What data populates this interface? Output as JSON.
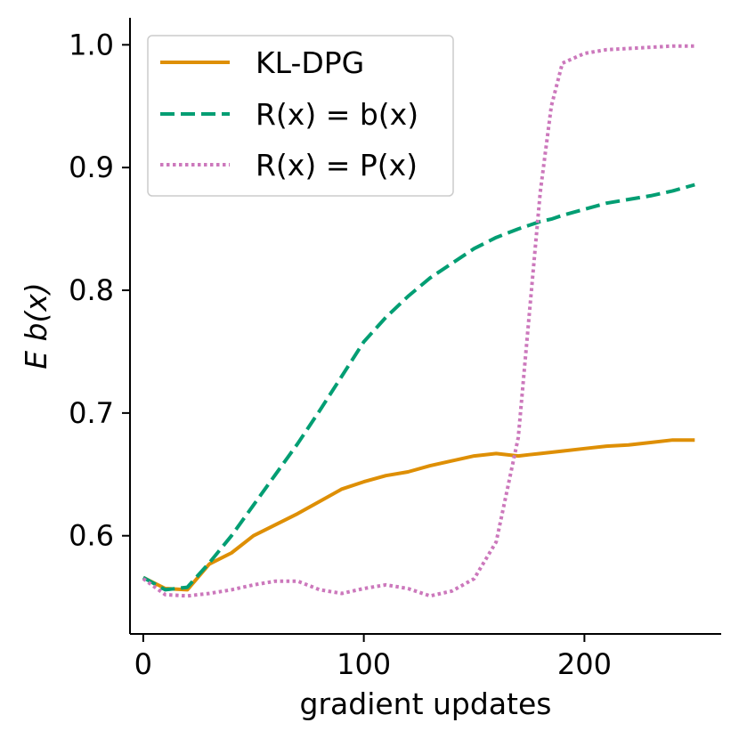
{
  "chart_data": {
    "type": "line",
    "xlabel": "gradient updates",
    "ylabel": "E b(x)",
    "xlim": [
      -6,
      262
    ],
    "ylim": [
      0.52,
      1.022
    ],
    "x_ticks": [
      0,
      100,
      200
    ],
    "x_tick_labels": [
      "0",
      "100",
      "200"
    ],
    "y_ticks": [
      0.6,
      0.7,
      0.8,
      0.9,
      1.0
    ],
    "y_tick_labels": [
      "0.6",
      "0.7",
      "0.8",
      "0.9",
      "1.0"
    ],
    "grid": false,
    "legend_position": "top-left",
    "x": [
      0,
      10,
      20,
      30,
      40,
      50,
      60,
      70,
      80,
      90,
      100,
      110,
      120,
      130,
      140,
      150,
      160,
      170,
      175,
      180,
      185,
      190,
      200,
      210,
      220,
      230,
      240,
      250
    ],
    "series": [
      {
        "name": "KL-DPG",
        "style": "solid",
        "color": "#de8f05",
        "values": [
          0.566,
          0.557,
          0.556,
          0.577,
          0.586,
          0.6,
          0.609,
          0.618,
          0.628,
          0.638,
          0.644,
          0.649,
          0.652,
          0.657,
          0.661,
          0.665,
          0.667,
          0.665,
          0.666,
          0.667,
          0.668,
          0.669,
          0.671,
          0.673,
          0.674,
          0.676,
          0.678,
          0.678
        ]
      },
      {
        "name": "R(x) = b(x)",
        "style": "dashed",
        "color": "#029e73",
        "values": [
          0.566,
          0.556,
          0.558,
          0.578,
          0.6,
          0.625,
          0.65,
          0.675,
          0.702,
          0.73,
          0.758,
          0.778,
          0.795,
          0.81,
          0.822,
          0.834,
          0.843,
          0.85,
          0.853,
          0.856,
          0.858,
          0.861,
          0.866,
          0.871,
          0.874,
          0.877,
          0.881,
          0.886
        ]
      },
      {
        "name": "R(x) = P(x)",
        "style": "dotted",
        "color": "#cc78bc",
        "values": [
          0.565,
          0.552,
          0.551,
          0.553,
          0.556,
          0.56,
          0.563,
          0.563,
          0.556,
          0.553,
          0.557,
          0.56,
          0.557,
          0.551,
          0.555,
          0.565,
          0.595,
          0.68,
          0.78,
          0.88,
          0.95,
          0.985,
          0.993,
          0.996,
          0.997,
          0.998,
          0.999,
          0.999
        ]
      }
    ]
  }
}
